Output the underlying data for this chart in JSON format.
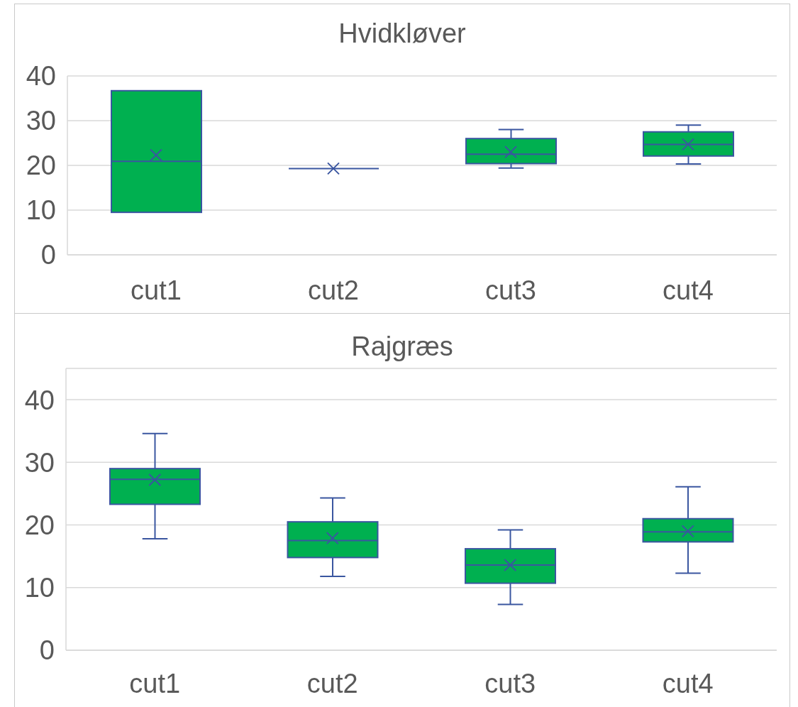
{
  "chart_data": [
    {
      "type": "box",
      "title": "Hvidkløver",
      "categories": [
        "cut1",
        "cut2",
        "cut3",
        "cut4"
      ],
      "colors": [
        "#00b050",
        "#3a56a0",
        "#00b050",
        "#00b050"
      ],
      "boxes": [
        {
          "low": 9.5,
          "q1": 9.5,
          "median": 20.9,
          "q3": 36.7,
          "high": 36.7,
          "mean": 22.3
        },
        {
          "low": 19.3,
          "q1": 19.3,
          "median": 19.3,
          "q3": 19.3,
          "high": 19.3,
          "mean": 19.3
        },
        {
          "low": 19.4,
          "q1": 20.4,
          "median": 22.5,
          "q3": 26.0,
          "high": 28.0,
          "mean": 23.0
        },
        {
          "low": 20.3,
          "q1": 22.1,
          "median": 24.7,
          "q3": 27.5,
          "high": 29.0,
          "mean": 24.7
        }
      ],
      "ylim": [
        0,
        40
      ],
      "yticks": [
        0,
        10,
        20,
        30,
        40
      ],
      "grid": "y"
    },
    {
      "type": "box",
      "title": "Rajgræs",
      "categories": [
        "cut1",
        "cut2",
        "cut3",
        "cut4"
      ],
      "color": "#00b050",
      "boxes": [
        {
          "low": 17.8,
          "q1": 23.3,
          "median": 27.3,
          "q3": 29.0,
          "high": 34.6,
          "mean": 27.2
        },
        {
          "low": 11.8,
          "q1": 14.8,
          "median": 17.5,
          "q3": 20.5,
          "high": 24.3,
          "mean": 17.9
        },
        {
          "low": 7.3,
          "q1": 10.7,
          "median": 13.6,
          "q3": 16.2,
          "high": 19.2,
          "mean": 13.6
        },
        {
          "low": 12.3,
          "q1": 17.3,
          "median": 18.9,
          "q3": 21.0,
          "high": 26.1,
          "mean": 19.0
        }
      ],
      "ylim": [
        0,
        45
      ],
      "yticks": [
        0,
        10,
        20,
        30,
        40
      ],
      "grid": "y"
    }
  ]
}
